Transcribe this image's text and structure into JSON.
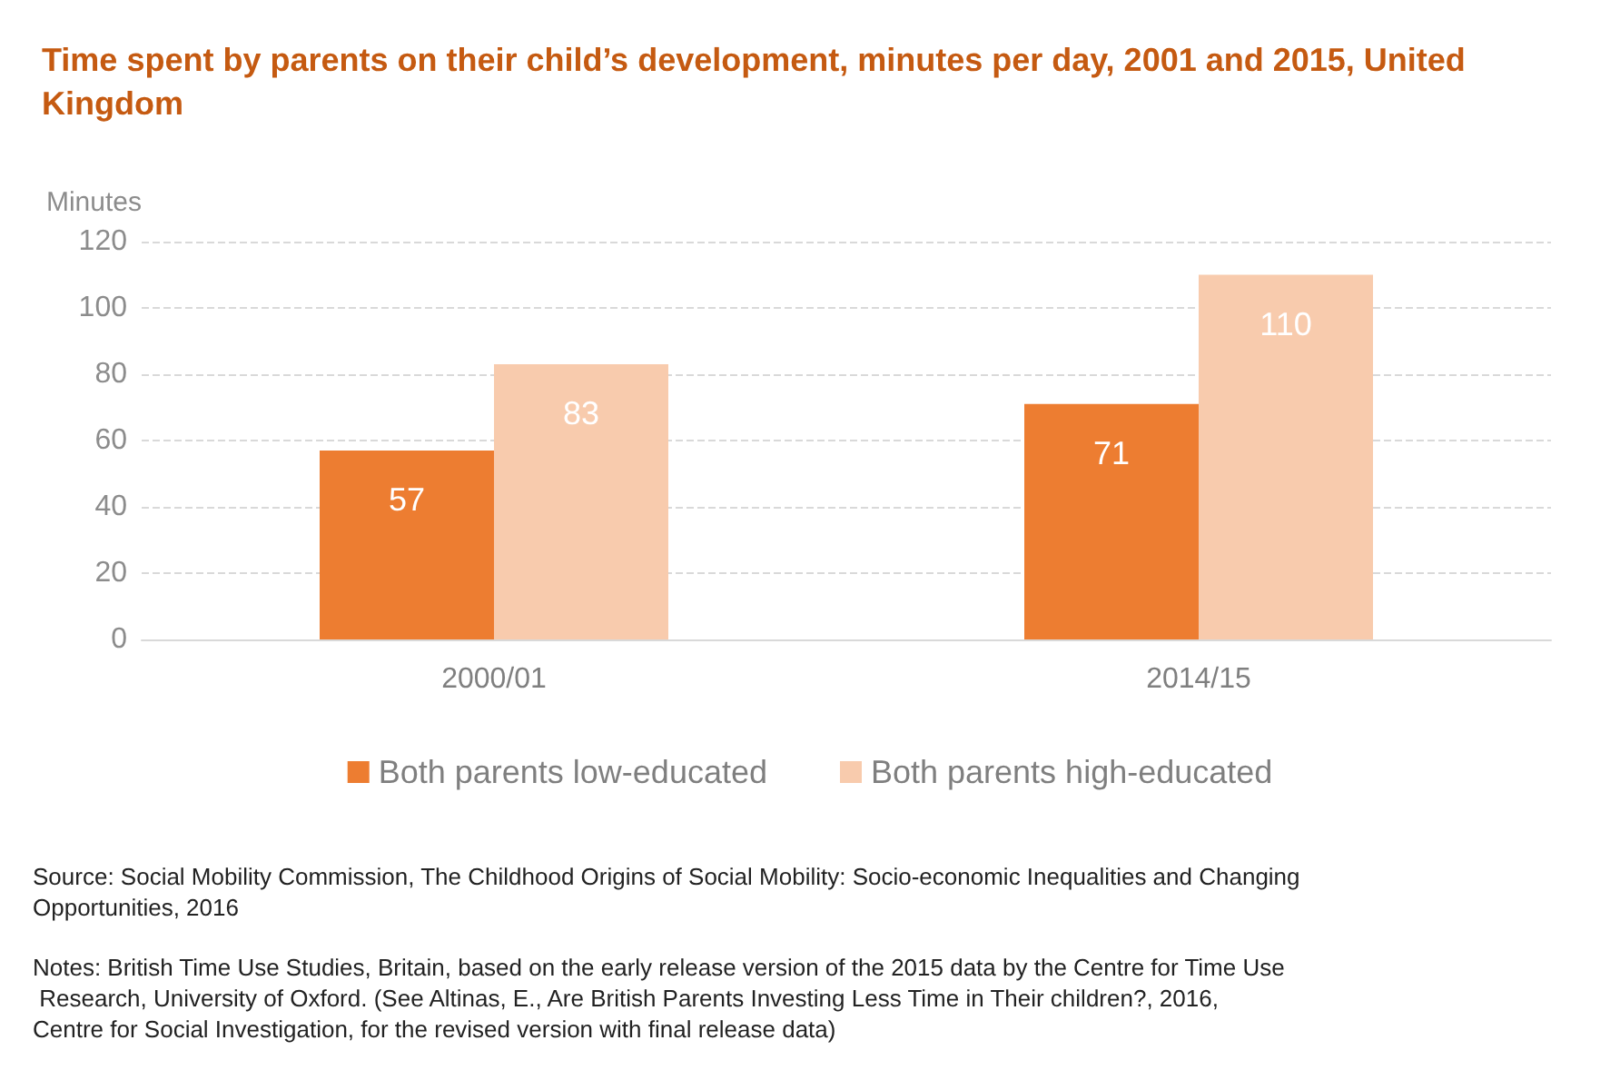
{
  "chart_data": {
    "type": "bar",
    "title": "Time spent by parents on their child’s development, minutes per day, 2001 and 2015, United Kingdom",
    "ylabel": "Minutes",
    "categories": [
      "2000/01",
      "2014/15"
    ],
    "series": [
      {
        "name": "Both parents low-educated",
        "color": "#ed7d31",
        "values": [
          57,
          71
        ]
      },
      {
        "name": "Both parents high-educated",
        "color": "#f8cbad",
        "values": [
          83,
          110
        ]
      }
    ],
    "ylim": [
      0,
      120
    ],
    "yticks": [
      0,
      20,
      40,
      60,
      80,
      100,
      120
    ],
    "grid": "y",
    "legend": "bottom",
    "data_labels": true,
    "annotations": [
      "Source: Social Mobility Commission, The Childhood Origins of Social Mobility: Socio-economic Inequalities and Changing Opportunities, 2016",
      "Notes: British Time Use Studies, Britain, based on the early release version of the 2015 data by the Centre for Time Use Research, University of Oxford. (See Altinas, E., Are British Parents Investing Less Time in Their children?, 2016, Centre for Social Investigation, for the revised version with final release data)"
    ]
  }
}
